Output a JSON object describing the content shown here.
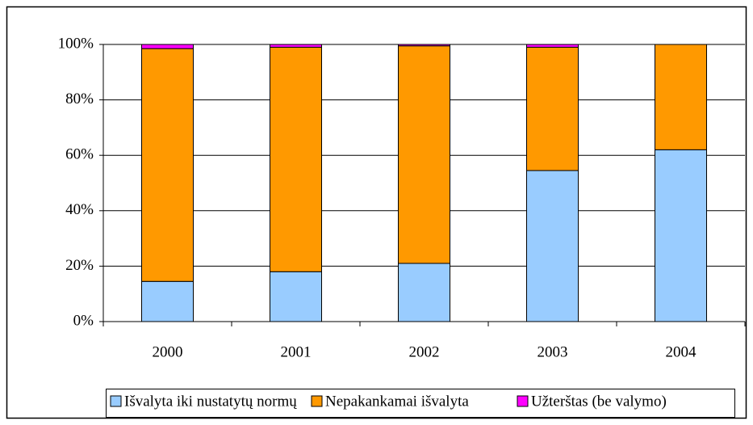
{
  "chart_data": {
    "type": "stacked_bar",
    "categories": [
      "2000",
      "2001",
      "2002",
      "2003",
      "2004"
    ],
    "series": [
      {
        "name": "Išvalyta iki nustatytų normų",
        "color": "#99ccff",
        "values": [
          14.5,
          18,
          21,
          54.5,
          62
        ]
      },
      {
        "name": "Nepakankamai išvalyta",
        "color": "#ff9900",
        "values": [
          84,
          81,
          78.5,
          44.5,
          38
        ]
      },
      {
        "name": "Užterštas (be valymo)",
        "color": "#ff00ff",
        "values": [
          1.5,
          1,
          0.5,
          1,
          0
        ]
      }
    ],
    "ylim": [
      0,
      100
    ],
    "yticks": [
      {
        "value": 0,
        "label": "0%"
      },
      {
        "value": 20,
        "label": "20%"
      },
      {
        "value": 40,
        "label": "40%"
      },
      {
        "value": 60,
        "label": "60%"
      },
      {
        "value": 80,
        "label": "80%"
      },
      {
        "value": 100,
        "label": "100%"
      }
    ],
    "grid": true,
    "legend": "bottom"
  }
}
